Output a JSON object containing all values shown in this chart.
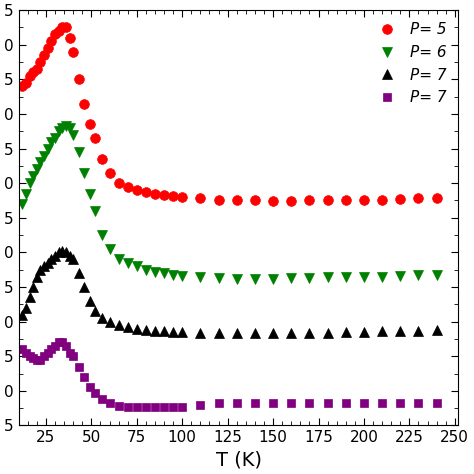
{
  "xlabel": "T (K)",
  "xlim": [
    10,
    252
  ],
  "ylim": [
    -5,
    55
  ],
  "ytick_vals": [
    -5,
    0,
    5,
    10,
    15,
    20,
    25,
    30,
    35,
    40,
    45,
    50,
    55
  ],
  "ytick_labels": [
    "5",
    "0",
    "5",
    "0",
    "5",
    "0",
    "5",
    "0",
    "5",
    "0",
    "5",
    "0",
    "5"
  ],
  "xtick_vals": [
    25,
    50,
    75,
    100,
    125,
    150,
    175,
    200,
    225,
    250
  ],
  "xlabel_fontsize": 14,
  "tick_fontsize": 11,
  "legend_fontsize": 11,
  "series": [
    {
      "label": "P= 5",
      "color": "#FF0000",
      "marker": "o",
      "markersize": 7,
      "T": [
        12,
        14,
        16,
        18,
        20,
        22,
        24,
        26,
        28,
        30,
        32,
        34,
        36,
        38,
        40,
        43,
        46,
        49,
        52,
        56,
        60,
        65,
        70,
        75,
        80,
        85,
        90,
        95,
        100,
        110,
        120,
        130,
        140,
        150,
        160,
        170,
        180,
        190,
        200,
        210,
        220,
        230,
        240
      ],
      "k": [
        44.0,
        44.5,
        45.5,
        46.0,
        46.5,
        47.5,
        48.5,
        49.5,
        50.5,
        51.5,
        52.0,
        52.5,
        52.5,
        51.0,
        49.0,
        45.0,
        41.5,
        38.5,
        36.5,
        33.5,
        31.5,
        30.0,
        29.5,
        29.0,
        28.7,
        28.5,
        28.3,
        28.2,
        28.0,
        27.8,
        27.6,
        27.5,
        27.5,
        27.4,
        27.4,
        27.5,
        27.5,
        27.5,
        27.6,
        27.6,
        27.7,
        27.8,
        27.8
      ]
    },
    {
      "label": "P= 6",
      "color": "#008000",
      "marker": "v",
      "markersize": 7,
      "T": [
        12,
        14,
        16,
        18,
        20,
        22,
        24,
        26,
        28,
        30,
        32,
        34,
        36,
        38,
        40,
        43,
        46,
        49,
        52,
        56,
        60,
        65,
        70,
        75,
        80,
        85,
        90,
        95,
        100,
        110,
        120,
        130,
        140,
        150,
        160,
        170,
        180,
        190,
        200,
        210,
        220,
        230,
        240
      ],
      "k": [
        27.0,
        28.5,
        30.0,
        31.0,
        32.0,
        33.0,
        34.0,
        35.0,
        36.0,
        36.5,
        37.5,
        38.0,
        38.2,
        38.0,
        37.0,
        34.5,
        31.5,
        28.5,
        26.0,
        22.5,
        20.5,
        19.0,
        18.5,
        18.0,
        17.5,
        17.2,
        17.0,
        16.8,
        16.6,
        16.4,
        16.3,
        16.2,
        16.2,
        16.2,
        16.3,
        16.3,
        16.4,
        16.4,
        16.5,
        16.5,
        16.6,
        16.7,
        16.8
      ]
    },
    {
      "label": "P= 7",
      "color": "#000000",
      "marker": "^",
      "markersize": 7,
      "T": [
        12,
        14,
        16,
        18,
        20,
        22,
        24,
        26,
        28,
        30,
        32,
        34,
        36,
        38,
        40,
        43,
        46,
        49,
        52,
        56,
        60,
        65,
        70,
        75,
        80,
        85,
        90,
        95,
        100,
        110,
        120,
        130,
        140,
        150,
        160,
        170,
        180,
        190,
        200,
        210,
        220,
        230,
        240
      ],
      "k": [
        11.0,
        12.0,
        13.5,
        15.0,
        16.5,
        17.5,
        18.0,
        18.5,
        19.0,
        19.5,
        20.0,
        20.2,
        20.0,
        19.5,
        19.0,
        17.0,
        15.0,
        13.0,
        11.5,
        10.5,
        10.0,
        9.5,
        9.2,
        9.0,
        8.8,
        8.7,
        8.6,
        8.5,
        8.5,
        8.4,
        8.3,
        8.3,
        8.3,
        8.3,
        8.3,
        8.4,
        8.4,
        8.5,
        8.5,
        8.6,
        8.6,
        8.7,
        8.8
      ]
    },
    {
      "label": "P= 7",
      "color": "#800080",
      "marker": "s",
      "markersize": 5.5,
      "T": [
        12,
        14,
        16,
        18,
        20,
        22,
        24,
        26,
        28,
        30,
        32,
        34,
        36,
        38,
        40,
        43,
        46,
        49,
        52,
        56,
        60,
        65,
        70,
        75,
        80,
        85,
        90,
        95,
        100,
        110,
        120,
        130,
        140,
        150,
        160,
        170,
        180,
        190,
        200,
        210,
        220,
        230,
        240
      ],
      "k": [
        6.0,
        5.5,
        5.0,
        4.8,
        4.5,
        4.5,
        5.0,
        5.5,
        6.0,
        6.5,
        7.0,
        7.0,
        6.5,
        5.5,
        5.0,
        3.5,
        2.0,
        0.5,
        -0.3,
        -1.2,
        -1.8,
        -2.2,
        -2.3,
        -2.3,
        -2.3,
        -2.3,
        -2.3,
        -2.3,
        -2.3,
        -2.0,
        -1.8,
        -1.8,
        -1.8,
        -1.8,
        -1.8,
        -1.8,
        -1.8,
        -1.8,
        -1.8,
        -1.8,
        -1.8,
        -1.8,
        -1.8
      ]
    }
  ]
}
